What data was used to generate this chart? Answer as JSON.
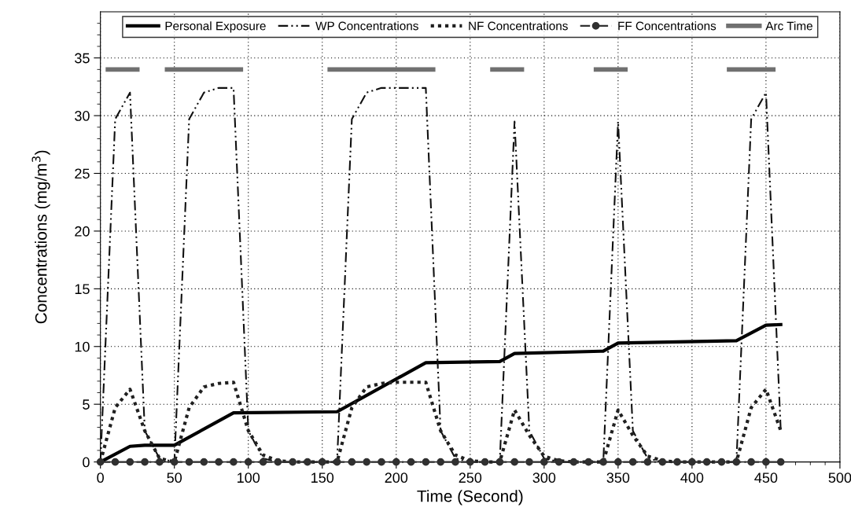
{
  "chart_data": {
    "type": "line",
    "xlabel": "Time (Second)",
    "ylabel": "Concentrations (mg/m$^{3}$)",
    "xlim": [
      0,
      500
    ],
    "ylim": [
      0,
      39
    ],
    "xticks": [
      0,
      {
        "value": 10,
        "label": null
      },
      {
        "value": 20,
        "label": null
      },
      {
        "value": 30,
        "label": null
      },
      {
        "value": 40,
        "label": null
      },
      50,
      {
        "value": 60,
        "label": null
      },
      {
        "value": 70,
        "label": null
      },
      {
        "value": 80,
        "label": null
      },
      {
        "value": 90,
        "label": null
      },
      100,
      {
        "value": 110,
        "label": null
      },
      {
        "value": 120,
        "label": null
      },
      {
        "value": 130,
        "label": null
      },
      {
        "value": 140,
        "label": null
      },
      150,
      {
        "value": 160,
        "label": null
      },
      {
        "value": 170,
        "label": null
      },
      {
        "value": 180,
        "label": null
      },
      {
        "value": 190,
        "label": null
      },
      200,
      {
        "value": 210,
        "label": null
      },
      {
        "value": 220,
        "label": null
      },
      {
        "value": 230,
        "label": null
      },
      {
        "value": 240,
        "label": null
      },
      250,
      {
        "value": 260,
        "label": null
      },
      {
        "value": 270,
        "label": null
      },
      {
        "value": 280,
        "label": null
      },
      {
        "value": 290,
        "label": null
      },
      300,
      {
        "value": 310,
        "label": null
      },
      {
        "value": 320,
        "label": null
      },
      {
        "value": 330,
        "label": null
      },
      {
        "value": 340,
        "label": null
      },
      350,
      {
        "value": 360,
        "label": null
      },
      {
        "value": 370,
        "label": null
      },
      {
        "value": 380,
        "label": null
      },
      {
        "value": 390,
        "label": null
      },
      400,
      {
        "value": 410,
        "label": null
      },
      {
        "value": 420,
        "label": null
      },
      {
        "value": 430,
        "label": null
      },
      {
        "value": 440,
        "label": null
      },
      450,
      {
        "value": 460,
        "label": null
      },
      {
        "value": 470,
        "label": null
      },
      {
        "value": 480,
        "label": null
      },
      {
        "value": 490,
        "label": null
      },
      500
    ],
    "yticks": [
      0,
      {
        "value": 1,
        "label": null
      },
      {
        "value": 2,
        "label": null
      },
      {
        "value": 3,
        "label": null
      },
      {
        "value": 4,
        "label": null
      },
      5,
      {
        "value": 6,
        "label": null
      },
      {
        "value": 7,
        "label": null
      },
      {
        "value": 8,
        "label": null
      },
      {
        "value": 9,
        "label": null
      },
      10,
      {
        "value": 11,
        "label": null
      },
      {
        "value": 12,
        "label": null
      },
      {
        "value": 13,
        "label": null
      },
      {
        "value": 14,
        "label": null
      },
      15,
      {
        "value": 16,
        "label": null
      },
      {
        "value": 17,
        "label": null
      },
      {
        "value": 18,
        "label": null
      },
      {
        "value": 19,
        "label": null
      },
      20,
      {
        "value": 21,
        "label": null
      },
      {
        "value": 22,
        "label": null
      },
      {
        "value": 23,
        "label": null
      },
      {
        "value": 24,
        "label": null
      },
      25,
      {
        "value": 26,
        "label": null
      },
      {
        "value": 27,
        "label": null
      },
      {
        "value": 28,
        "label": null
      },
      {
        "value": 29,
        "label": null
      },
      30,
      {
        "value": 31,
        "label": null
      },
      {
        "value": 32,
        "label": null
      },
      {
        "value": 33,
        "label": null
      },
      {
        "value": 34,
        "label": null
      },
      35,
      {
        "value": 36,
        "label": null
      },
      {
        "value": 37,
        "label": null
      },
      {
        "value": 38,
        "label": null
      }
    ],
    "grid": true,
    "legend": "top",
    "series": [
      {
        "name": "Personal Exposure",
        "color": "#000000",
        "line_style": "solid",
        "marker": "none",
        "x": [
          0,
          20,
          30,
          50,
          90,
          160,
          220,
          270,
          280,
          340,
          350,
          430,
          450,
          460
        ],
        "values": [
          0,
          1.35,
          1.45,
          1.45,
          4.25,
          4.35,
          8.6,
          8.7,
          9.4,
          9.6,
          10.3,
          10.5,
          11.85,
          11.9
        ]
      },
      {
        "name": "WP Concentrations",
        "color": "#101010",
        "line_style": "dashdotdot",
        "marker": "none",
        "x": [
          0,
          10,
          20,
          30,
          40,
          50,
          60,
          70,
          80,
          90,
          100,
          110,
          120,
          130,
          140,
          150,
          160,
          170,
          180,
          190,
          200,
          210,
          220,
          230,
          240,
          250,
          260,
          270,
          280,
          290,
          300,
          310,
          320,
          330,
          340,
          350,
          360,
          370,
          380,
          390,
          400,
          410,
          420,
          430,
          440,
          450,
          460
        ],
        "values": [
          0,
          29.7,
          32,
          2.7,
          0.3,
          0,
          29.7,
          32,
          32.4,
          32.4,
          2.7,
          0.3,
          0,
          0,
          0,
          0,
          0,
          29.7,
          32,
          32.4,
          32.4,
          32.4,
          32.4,
          2.7,
          0.3,
          0,
          0,
          0,
          29.5,
          2.7,
          0.3,
          0,
          0,
          0,
          0,
          29.5,
          2.7,
          0.3,
          0,
          0,
          0,
          0,
          0,
          0,
          29.7,
          32,
          2.7
        ]
      },
      {
        "name": "NF Concentrations",
        "color": "#202020",
        "line_style": "dotted",
        "marker": "none",
        "x": [
          0,
          10,
          20,
          30,
          40,
          50,
          60,
          70,
          80,
          90,
          100,
          110,
          120,
          130,
          140,
          150,
          160,
          170,
          180,
          190,
          200,
          210,
          220,
          230,
          240,
          250,
          260,
          270,
          280,
          290,
          300,
          310,
          320,
          330,
          340,
          350,
          360,
          370,
          380,
          390,
          400,
          410,
          420,
          430,
          440,
          450,
          460
        ],
        "values": [
          0,
          4.7,
          6.3,
          2.7,
          0.3,
          0,
          4.7,
          6.5,
          6.8,
          6.9,
          2.7,
          0.6,
          0.1,
          0,
          0,
          0,
          0,
          4.7,
          6.5,
          6.8,
          6.9,
          6.9,
          6.9,
          2.7,
          0.6,
          0.1,
          0,
          0,
          4.5,
          2.3,
          0.5,
          0.1,
          0,
          0,
          0,
          4.5,
          2.3,
          0.5,
          0.1,
          0,
          0,
          0,
          0,
          0,
          4.7,
          6.3,
          2.7
        ]
      },
      {
        "name": "FF Concentrations",
        "color": "#303030",
        "line_style": "dashdot",
        "marker": "circle",
        "x": [
          0,
          10,
          20,
          30,
          40,
          50,
          60,
          70,
          80,
          90,
          100,
          110,
          120,
          130,
          140,
          150,
          160,
          170,
          180,
          190,
          200,
          210,
          220,
          230,
          240,
          250,
          260,
          270,
          280,
          290,
          300,
          310,
          320,
          330,
          340,
          350,
          360,
          370,
          380,
          390,
          400,
          410,
          420,
          430,
          440,
          450,
          460
        ],
        "values": [
          0,
          0,
          0,
          0,
          0,
          0,
          0,
          0,
          0,
          0,
          0,
          0,
          0,
          0,
          0,
          0,
          0,
          0,
          0,
          0,
          0,
          0,
          0,
          0,
          0,
          0,
          0,
          0,
          0,
          0,
          0,
          0,
          0,
          0,
          0,
          0,
          0,
          0,
          0,
          0,
          0,
          0,
          0,
          0,
          0,
          0,
          0
        ]
      },
      {
        "name": "Arc Time",
        "color": "#707070",
        "line_style": "solid",
        "marker": "none",
        "x": [
          5,
          25,
          35,
          45,
          95,
          125,
          155,
          225,
          245,
          265,
          285,
          310,
          335,
          355,
          390,
          425,
          455
        ],
        "values": [
          34,
          34,
          null,
          34,
          34,
          null,
          34,
          34,
          null,
          34,
          34,
          null,
          34,
          34,
          null,
          34,
          34
        ]
      }
    ]
  }
}
